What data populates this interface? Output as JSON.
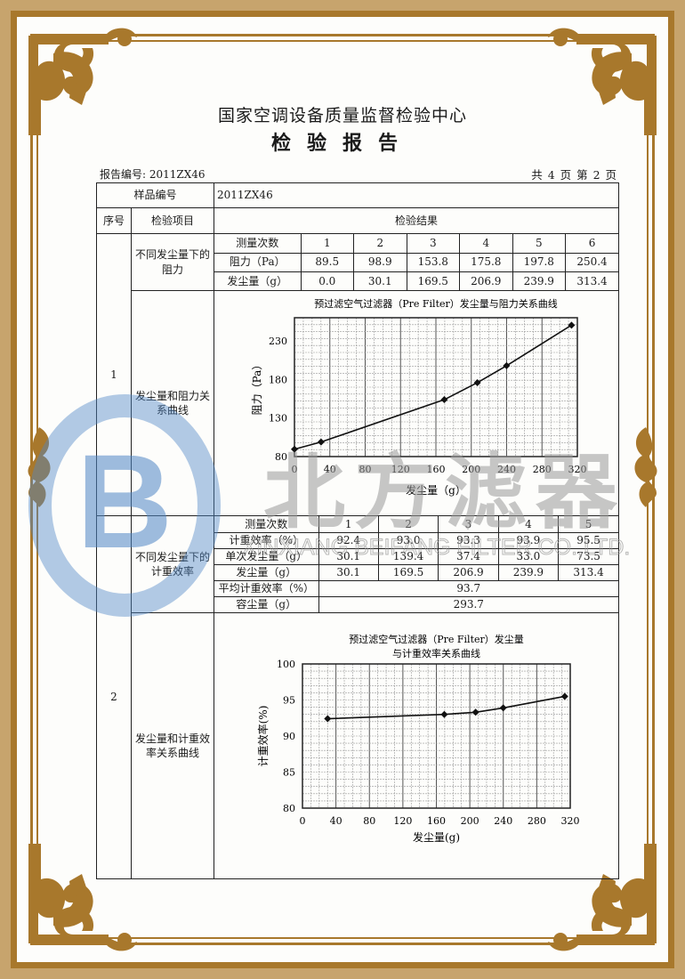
{
  "header": {
    "org": "国家空调设备质量监督检验中心",
    "doc_title": "检验报告",
    "report_no": "报告编号: 2011ZX46",
    "page_info": "共 4 页 第 2 页"
  },
  "table": {
    "sample_label": "样品编号",
    "sample_value": "2011ZX46",
    "col_seq": "序号",
    "col_item": "检验项目",
    "col_result": "检验结果",
    "section1": {
      "seq": "1",
      "item1": "不同发尘量下的阻力",
      "item2": "发尘量和阻力关系曲线",
      "rows": [
        {
          "label": "测量次数",
          "values": [
            "1",
            "2",
            "3",
            "4",
            "5",
            "6"
          ]
        },
        {
          "label": "阻力（Pa）",
          "values": [
            "89.5",
            "98.9",
            "153.8",
            "175.8",
            "197.8",
            "250.4"
          ]
        },
        {
          "label": "发尘量（g）",
          "values": [
            "0.0",
            "30.1",
            "169.5",
            "206.9",
            "239.9",
            "313.4"
          ]
        }
      ]
    },
    "section2": {
      "seq": "2",
      "item1": "不同发尘量下的计重效率",
      "item2": "发尘量和计重效率关系曲线",
      "rows": [
        {
          "label": "测量次数",
          "values": [
            "1",
            "2",
            "3",
            "4",
            "5"
          ]
        },
        {
          "label": "计重效率（%）",
          "values": [
            "92.4",
            "93.0",
            "93.3",
            "93.9",
            "95.5"
          ]
        },
        {
          "label": "单次发尘量（g）",
          "values": [
            "30.1",
            "139.4",
            "37.4",
            "33.0",
            "73.5"
          ]
        },
        {
          "label": "发尘量（g）",
          "values": [
            "30.1",
            "169.5",
            "206.9",
            "239.9",
            "313.4"
          ]
        }
      ],
      "avg_label": "平均计重效率（%）",
      "avg_value": "93.7",
      "capacity_label": "容尘量（g）",
      "capacity_value": "293.7"
    }
  },
  "chart_data": [
    {
      "type": "line",
      "title": "预过滤空气过滤器（Pre Filter）发尘量与阻力关系曲线",
      "xlabel": "发尘量（g）",
      "ylabel": "阻力（Pa）",
      "x": [
        0.0,
        30.1,
        169.5,
        206.9,
        239.9,
        313.4
      ],
      "y": [
        89.5,
        98.9,
        153.8,
        175.8,
        197.8,
        250.4
      ],
      "xlim": [
        0,
        320
      ],
      "ylim": [
        80,
        260
      ],
      "xticks": [
        "0",
        "40",
        "80",
        "120",
        "160",
        "200",
        "240",
        "280",
        "320"
      ],
      "yticks": [
        "80",
        "130",
        "180",
        "230"
      ],
      "grid": true
    },
    {
      "type": "line",
      "title": "预过滤空气过滤器（Pre Filter）发尘量",
      "title2": "与计重效率关系曲线",
      "xlabel": "发尘量(g)",
      "ylabel": "计重效率(%)",
      "x": [
        30.1,
        169.5,
        206.9,
        239.9,
        313.4
      ],
      "y": [
        92.4,
        93.0,
        93.3,
        93.9,
        95.5
      ],
      "xlim": [
        0,
        320
      ],
      "ylim": [
        80,
        100
      ],
      "xticks": [
        "0",
        "40",
        "80",
        "120",
        "160",
        "200",
        "240",
        "280",
        "320"
      ],
      "yticks": [
        "80",
        "85",
        "90",
        "95",
        "100"
      ],
      "grid": true
    }
  ],
  "watermark": {
    "logo_letter": "B",
    "name": "北方滤器",
    "company": "XINXIANG BEIFANG FILTER CO.,LTD."
  },
  "colors": {
    "border_gold": "#a8782c",
    "border_tan": "#c7a46d",
    "watermark_blue": "#4f86c6",
    "watermark_gray": "#9a9a9a"
  }
}
